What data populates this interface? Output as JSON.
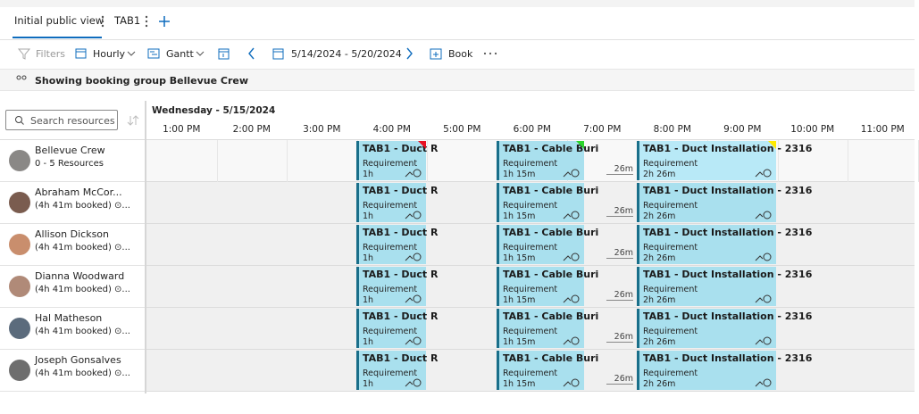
{
  "tabs": [
    {
      "label": "Initial public view"
    },
    {
      "label": "TAB1"
    }
  ],
  "toolbar": {
    "filters": "Filters",
    "view": "Hourly",
    "mode": "Gantt",
    "date_range": "5/14/2024 - 5/20/2024",
    "book": "Book"
  },
  "banner": "Showing booking group Bellevue Crew",
  "search_placeholder": "Search resources",
  "date_header": "Wednesday - 5/15/2024",
  "hours": [
    "1:00 PM",
    "2:00 PM",
    "3:00 PM",
    "4:00 PM",
    "5:00 PM",
    "6:00 PM",
    "7:00 PM",
    "8:00 PM",
    "9:00 PM",
    "10:00 PM",
    "11:00 PM"
  ],
  "resources": [
    {
      "name": "Bellevue Crew",
      "detail": "0 - 5 Resources",
      "travel": "26m",
      "bookings": [
        {
          "title": "TAB1 - Duct R",
          "type": "Requirement",
          "duration": "1h"
        },
        {
          "title": "TAB1 - Cable Buri",
          "type": "Requirement",
          "duration": "1h 15m"
        },
        {
          "title": "TAB1 - Duct Installation - 2316",
          "type": "Requirement",
          "duration": "2h 26m"
        }
      ]
    },
    {
      "name": "Abraham McCor...",
      "detail": "(4h 41m booked) ⊙...",
      "travel": "26m",
      "bookings": [
        {
          "title": "TAB1 - Duct R",
          "type": "Requirement",
          "duration": "1h"
        },
        {
          "title": "TAB1 - Cable Buri",
          "type": "Requirement",
          "duration": "1h 15m"
        },
        {
          "title": "TAB1 - Duct Installation - 2316",
          "type": "Requirement",
          "duration": "2h 26m"
        }
      ]
    },
    {
      "name": "Allison Dickson",
      "detail": "(4h 41m booked) ⊙...",
      "travel": "26m",
      "bookings": [
        {
          "title": "TAB1 - Duct R",
          "type": "Requirement",
          "duration": "1h"
        },
        {
          "title": "TAB1 - Cable Buri",
          "type": "Requirement",
          "duration": "1h 15m"
        },
        {
          "title": "TAB1 - Duct Installation - 2316",
          "type": "Requirement",
          "duration": "2h 26m"
        }
      ]
    },
    {
      "name": "Dianna Woodward",
      "detail": "(4h 41m booked) ⊙...",
      "travel": "26m",
      "bookings": [
        {
          "title": "TAB1 - Duct R",
          "type": "Requirement",
          "duration": "1h"
        },
        {
          "title": "TAB1 - Cable Buri",
          "type": "Requirement",
          "duration": "1h 15m"
        },
        {
          "title": "TAB1 - Duct Installation - 2316",
          "type": "Requirement",
          "duration": "2h 26m"
        }
      ]
    },
    {
      "name": "Hal Matheson",
      "detail": "(4h 41m booked) ⊙...",
      "travel": "26m",
      "bookings": [
        {
          "title": "TAB1 - Duct R",
          "type": "Requirement",
          "duration": "1h"
        },
        {
          "title": "TAB1 - Cable Buri",
          "type": "Requirement",
          "duration": "1h 15m"
        },
        {
          "title": "TAB1 - Duct Installation - 2316",
          "type": "Requirement",
          "duration": "2h 26m"
        }
      ]
    },
    {
      "name": "Joseph Gonsalves",
      "detail": "(4h 41m booked) ⊙...",
      "travel": "26m",
      "bookings": [
        {
          "title": "TAB1 - Duct R",
          "type": "Requirement",
          "duration": "1h"
        },
        {
          "title": "TAB1 - Cable Buri",
          "type": "Requirement",
          "duration": "1h 15m"
        },
        {
          "title": "TAB1 - Duct Installation - 2316",
          "type": "Requirement",
          "duration": "2h 26m"
        }
      ]
    }
  ]
}
